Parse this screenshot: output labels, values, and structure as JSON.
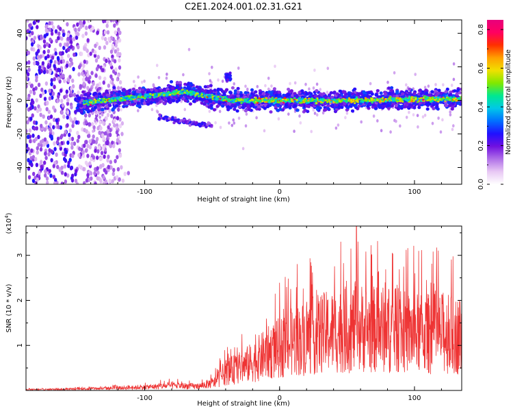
{
  "title": "C2E1.2024.001.02.31.G21",
  "chart_data": [
    {
      "type": "heatmap",
      "xlabel": "Height of straight line (km)",
      "ylabel": "Frequency (Hz)",
      "xlim": [
        -188,
        135
      ],
      "ylim": [
        -50,
        48
      ],
      "xticks": [
        -100,
        0,
        100
      ],
      "yticks": [
        -40,
        -20,
        0,
        20,
        40
      ],
      "colorbar": {
        "label": "Normalized spectral amplitude",
        "range": [
          0.0,
          0.85
        ],
        "ticks": [
          "0.0",
          "0.2",
          "0.4",
          "0.6",
          "0.8"
        ],
        "colors": [
          "#ffffff",
          "#e8c8f4",
          "#b070e8",
          "#7010e0",
          "#2010ff",
          "#0070ff",
          "#00c8e8",
          "#00e890",
          "#80e800",
          "#f0e000",
          "#ffa000",
          "#ff3000",
          "#ff0060",
          "#e8007c"
        ]
      },
      "features": [
        {
          "description": "main band",
          "x_range": [
            -150,
            135
          ],
          "center_hz": [
            -2,
            5,
            0,
            0,
            1
          ],
          "center_x": [
            -150,
            -70,
            -35,
            50,
            135
          ],
          "halfwidth_hz": 4
        },
        {
          "description": "blob",
          "x": -38,
          "y": 14
        },
        {
          "description": "low trace",
          "x_range": [
            -90,
            -50
          ],
          "y_range": [
            -15,
            -10
          ]
        },
        {
          "description": "broadband noise",
          "x_range": [
            -188,
            -120
          ],
          "y_range": [
            -50,
            48
          ]
        }
      ]
    },
    {
      "type": "line",
      "xlabel": "Height of straight line (km)",
      "ylabel": "SNR (10 * v/v)",
      "yscale_label": "(x10",
      "yscale_exp": "4",
      "xlim": [
        -188,
        135
      ],
      "ylim": [
        0,
        3.65
      ],
      "xticks": [
        -100,
        0,
        100
      ],
      "yticks": [
        1,
        2,
        3
      ],
      "color": "#ee3333",
      "x": [
        -188,
        -160,
        -130,
        -100,
        -80,
        -60,
        -48,
        -40,
        -30,
        -20,
        -10,
        0,
        10,
        20,
        30,
        40,
        50,
        60,
        70,
        80,
        90,
        100,
        110,
        120,
        135
      ],
      "y": [
        0.02,
        0.03,
        0.05,
        0.08,
        0.12,
        0.1,
        0.2,
        0.45,
        0.55,
        0.7,
        0.9,
        1.05,
        1.2,
        1.3,
        1.4,
        1.45,
        1.5,
        1.55,
        1.5,
        1.5,
        1.45,
        1.4,
        1.4,
        1.4,
        1.35
      ],
      "max": {
        "x": 57,
        "y": 3.65
      }
    }
  ]
}
